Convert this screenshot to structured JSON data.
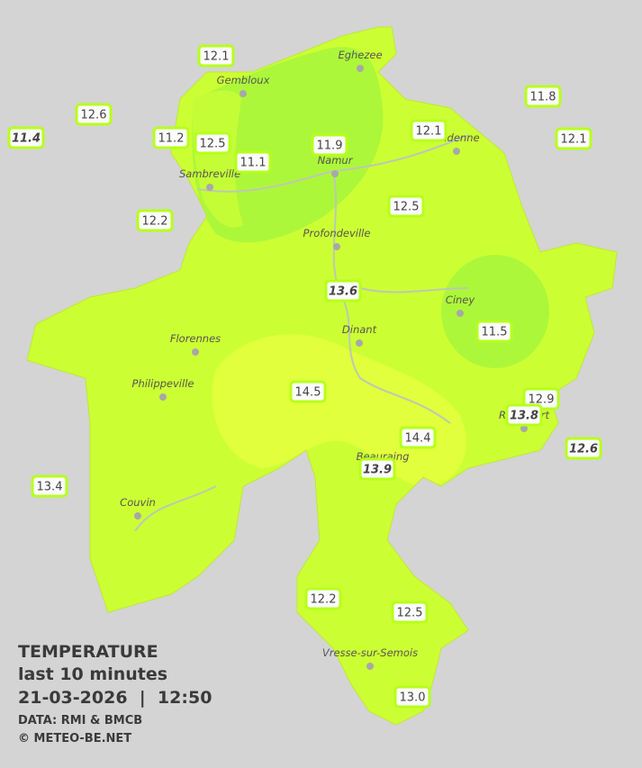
{
  "map": {
    "temperatures": [
      "12.1",
      "12.6",
      "11.4",
      "11.2",
      "12.5",
      "11.1",
      "11.9",
      "12.1",
      "11.8",
      "12.1",
      "12.2",
      "12.5",
      "13.6",
      "11.5",
      "14.5",
      "12.9",
      "13.8",
      "14.4",
      "12.6",
      "13.9",
      "13.4",
      "12.2",
      "12.5",
      "13.0"
    ],
    "cities": [
      "Eghezee",
      "Gembloux",
      "Andenne",
      "Namur",
      "Sambreville",
      "Profondeville",
      "Ciney",
      "Dinant",
      "Florennes",
      "Philippeville",
      "Beauraing",
      "Rochefort",
      "Couvin",
      "Vresse-sur-Semois"
    ]
  },
  "legend": {
    "title": "TEMPERATURE",
    "period": "last 10 minutes",
    "datetime": "21-03-2026  |  12:50",
    "source": "DATA: RMI & BMCB",
    "copyright": "© METEO-BE.NET"
  }
}
